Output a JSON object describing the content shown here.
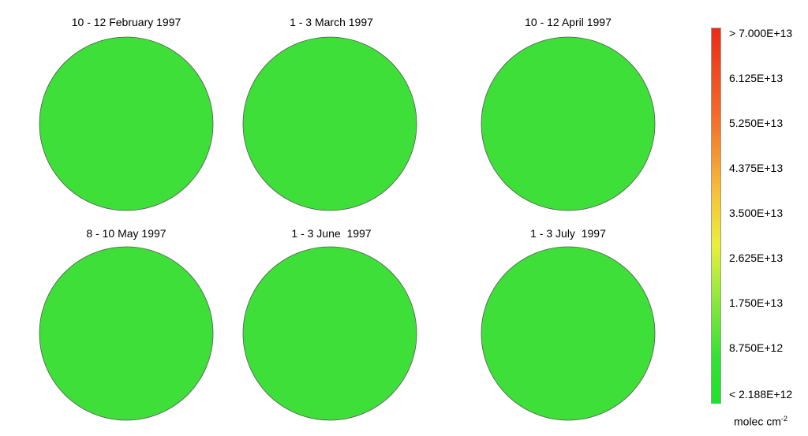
{
  "panels": [
    {
      "title": "10 - 12 February 1997"
    },
    {
      "title": "1 - 3 March 1997"
    },
    {
      "title": "10 - 12 April 1997"
    },
    {
      "title": "8 - 10 May 1997"
    },
    {
      "title": "1 - 3 June  1997"
    },
    {
      "title": "1 - 3 July  1997"
    }
  ],
  "colorbar": {
    "labels": [
      "> 7.000E+13",
      "6.125E+13",
      "5.250E+13",
      "4.375E+13",
      "3.500E+13",
      "2.625E+13",
      "1.750E+13",
      "8.750E+12",
      "< 2.188E+12"
    ],
    "units_base": "molec cm",
    "units_exp": "-2",
    "colors": [
      "#ec2a17",
      "#f3712a",
      "#f6c53a",
      "#e9f03a",
      "#8ee93d",
      "#32e233",
      "#1ee327"
    ]
  },
  "colors": {
    "map_green": "#3fdf3a",
    "grid_gray": "#8a8a8a",
    "coast": "#000000",
    "high": "#e2401e",
    "mid": "#f29a2e",
    "low": "#c9ea3c"
  }
}
